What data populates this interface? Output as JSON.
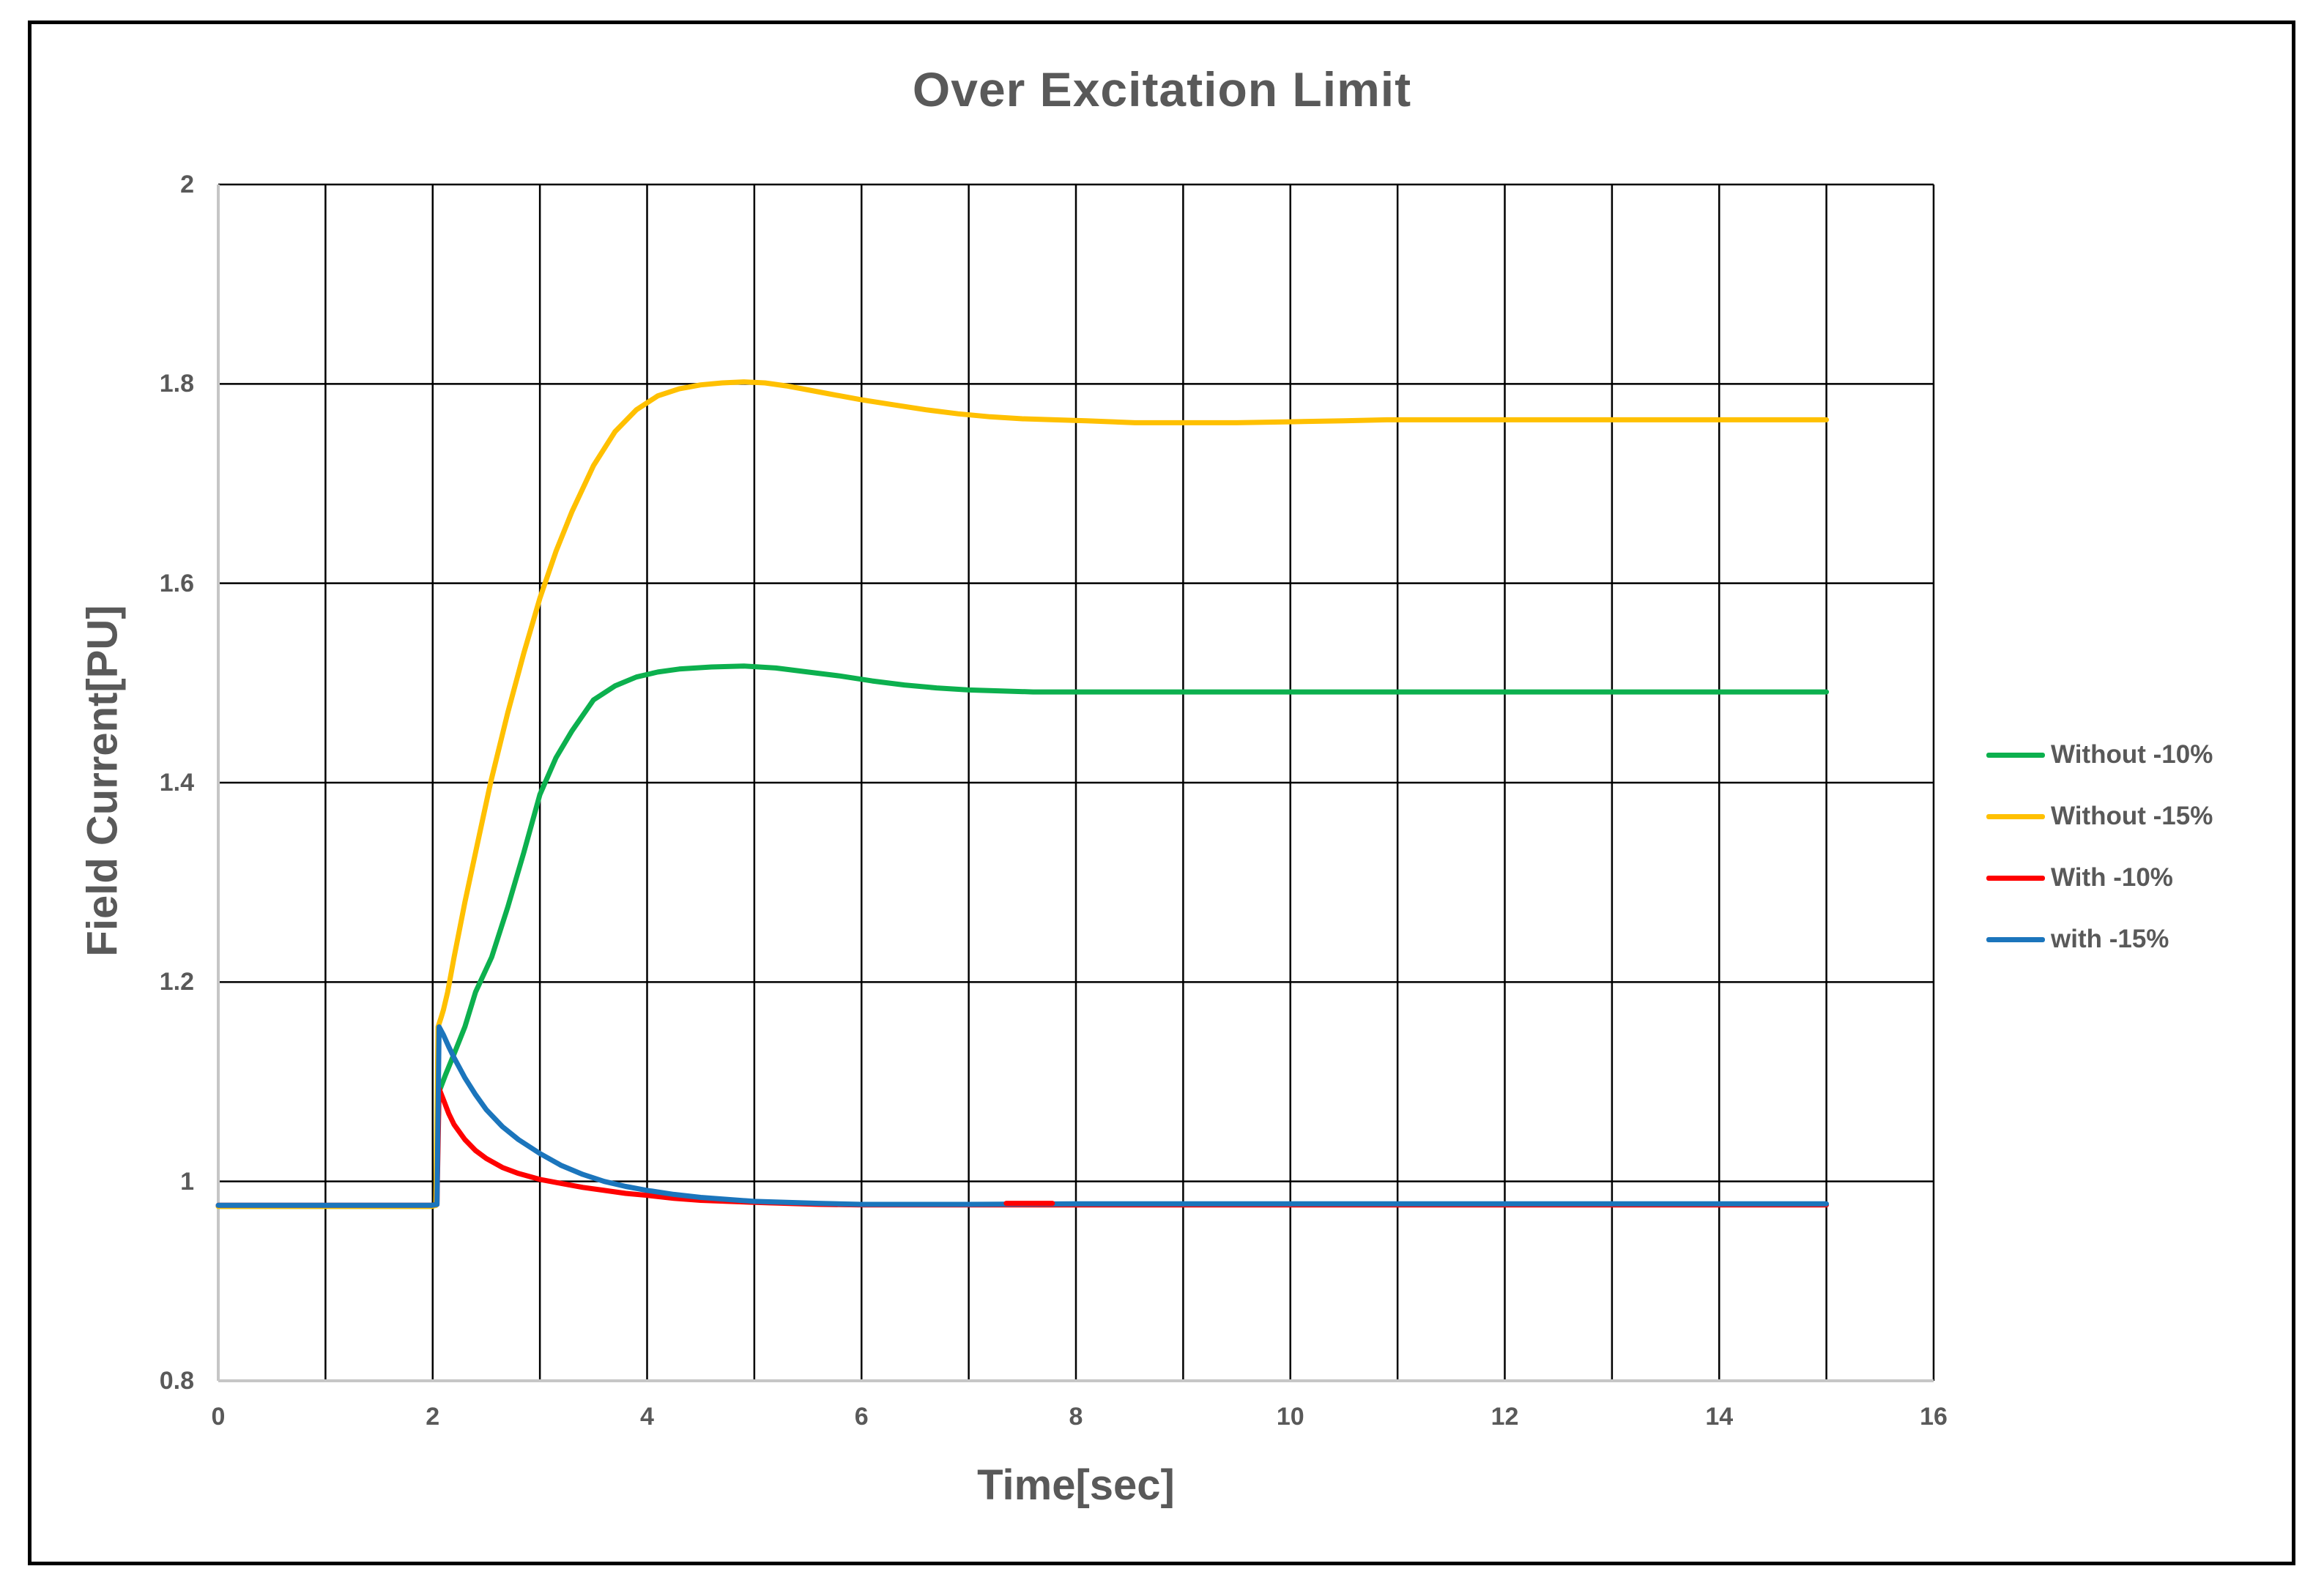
{
  "title": "Over Excitation Limit",
  "chart_data": {
    "type": "line",
    "title": "Over Excitation Limit",
    "xlabel": "Time[sec]",
    "ylabel": "Field Current[PU]",
    "xlim": [
      0,
      16
    ],
    "ylim": [
      0.8,
      2
    ],
    "grid": "on",
    "grid_color": "#000000",
    "axis_line_color": "#c6c6c6",
    "text_color": "#595959",
    "x_gridline_step": 1,
    "y_gridline_step": 0.2,
    "legend_position": "right-outside",
    "x_ticks": [
      {
        "value": 0,
        "label": "0"
      },
      {
        "value": 2,
        "label": "2"
      },
      {
        "value": 4,
        "label": "4"
      },
      {
        "value": 6,
        "label": "6"
      },
      {
        "value": 8,
        "label": "8"
      },
      {
        "value": 10,
        "label": "10"
      },
      {
        "value": 12,
        "label": "12"
      },
      {
        "value": 14,
        "label": "14"
      },
      {
        "value": 16,
        "label": "16"
      }
    ],
    "y_ticks": [
      {
        "value": 2.0,
        "label": "2"
      },
      {
        "value": 1.8,
        "label": "1.8"
      },
      {
        "value": 1.6,
        "label": "1.6"
      },
      {
        "value": 1.4,
        "label": "1.4"
      },
      {
        "value": 1.2,
        "label": "1.2"
      },
      {
        "value": 1.0,
        "label": "1"
      },
      {
        "value": 0.8,
        "label": "0.8"
      }
    ],
    "event_description": "Step disturbance at t=2 sec; all curves start at ~0.975 PU; curves end at t=15 sec",
    "series": [
      {
        "name": "Without -10%",
        "color": "#0cb04e",
        "points": [
          [
            0,
            0.975
          ],
          [
            1,
            0.975
          ],
          [
            1.99,
            0.975
          ],
          [
            2.03,
            0.976
          ],
          [
            2.06,
            1.09
          ],
          [
            2.12,
            1.107
          ],
          [
            2.2,
            1.128
          ],
          [
            2.3,
            1.155
          ],
          [
            2.4,
            1.19
          ],
          [
            2.55,
            1.225
          ],
          [
            2.7,
            1.275
          ],
          [
            2.85,
            1.33
          ],
          [
            3,
            1.388
          ],
          [
            3.15,
            1.425
          ],
          [
            3.3,
            1.452
          ],
          [
            3.5,
            1.483
          ],
          [
            3.7,
            1.497
          ],
          [
            3.9,
            1.506
          ],
          [
            4.1,
            1.511
          ],
          [
            4.3,
            1.514
          ],
          [
            4.6,
            1.516
          ],
          [
            4.9,
            1.517
          ],
          [
            5.2,
            1.515
          ],
          [
            5.5,
            1.511
          ],
          [
            5.8,
            1.507
          ],
          [
            6.1,
            1.502
          ],
          [
            6.4,
            1.498
          ],
          [
            6.7,
            1.495
          ],
          [
            7,
            1.493
          ],
          [
            7.3,
            1.492
          ],
          [
            7.6,
            1.491
          ],
          [
            8,
            1.491
          ],
          [
            9,
            1.491
          ],
          [
            10,
            1.491
          ],
          [
            11,
            1.491
          ],
          [
            12,
            1.491
          ],
          [
            13,
            1.491
          ],
          [
            14,
            1.491
          ],
          [
            15,
            1.491
          ]
        ]
      },
      {
        "name": "Without -15%",
        "color": "#ffc000",
        "points": [
          [
            0,
            0.975
          ],
          [
            1,
            0.975
          ],
          [
            1.99,
            0.975
          ],
          [
            2.03,
            0.976
          ],
          [
            2.05,
            1.155
          ],
          [
            2.08,
            1.165
          ],
          [
            2.1,
            1.172
          ],
          [
            2.14,
            1.19
          ],
          [
            2.2,
            1.225
          ],
          [
            2.3,
            1.28
          ],
          [
            2.4,
            1.33
          ],
          [
            2.54,
            1.4
          ],
          [
            2.7,
            1.47
          ],
          [
            2.85,
            1.53
          ],
          [
            3,
            1.585
          ],
          [
            3.15,
            1.632
          ],
          [
            3.3,
            1.672
          ],
          [
            3.5,
            1.718
          ],
          [
            3.7,
            1.752
          ],
          [
            3.9,
            1.774
          ],
          [
            4.1,
            1.788
          ],
          [
            4.3,
            1.795
          ],
          [
            4.5,
            1.799
          ],
          [
            4.7,
            1.801
          ],
          [
            4.9,
            1.802
          ],
          [
            5.1,
            1.801
          ],
          [
            5.3,
            1.798
          ],
          [
            5.5,
            1.794
          ],
          [
            5.7,
            1.79
          ],
          [
            6,
            1.784
          ],
          [
            6.3,
            1.779
          ],
          [
            6.6,
            1.774
          ],
          [
            6.9,
            1.77
          ],
          [
            7.2,
            1.767
          ],
          [
            7.5,
            1.765
          ],
          [
            7.8,
            1.764
          ],
          [
            8.1,
            1.763
          ],
          [
            8.55,
            1.761
          ],
          [
            9,
            1.761
          ],
          [
            9.5,
            1.761
          ],
          [
            10,
            1.762
          ],
          [
            10.5,
            1.763
          ],
          [
            10.9,
            1.764
          ],
          [
            11,
            1.764
          ],
          [
            12,
            1.764
          ],
          [
            13,
            1.764
          ],
          [
            14,
            1.764
          ],
          [
            15,
            1.764
          ]
        ]
      },
      {
        "name": "With -10%",
        "color": "#ff0000",
        "points": [
          [
            0,
            0.976
          ],
          [
            1,
            0.976
          ],
          [
            1.99,
            0.976
          ],
          [
            2.04,
            0.977
          ],
          [
            2.06,
            1.093
          ],
          [
            2.1,
            1.082
          ],
          [
            2.15,
            1.068
          ],
          [
            2.2,
            1.057
          ],
          [
            2.3,
            1.042
          ],
          [
            2.4,
            1.031
          ],
          [
            2.5,
            1.023
          ],
          [
            2.65,
            1.014
          ],
          [
            2.8,
            1.008
          ],
          [
            3,
            1.002
          ],
          [
            3.2,
            0.998
          ],
          [
            3.4,
            0.994
          ],
          [
            3.6,
            0.991
          ],
          [
            3.8,
            0.988
          ],
          [
            4,
            0.986
          ],
          [
            4.25,
            0.983
          ],
          [
            4.5,
            0.981
          ],
          [
            4.75,
            0.98
          ],
          [
            5,
            0.979
          ],
          [
            5.3,
            0.978
          ],
          [
            5.6,
            0.977
          ],
          [
            6,
            0.9765
          ],
          [
            7,
            0.9765
          ],
          [
            8,
            0.9765
          ],
          [
            9,
            0.9765
          ],
          [
            10,
            0.9765
          ],
          [
            12,
            0.9765
          ],
          [
            15,
            0.9765
          ]
        ]
      },
      {
        "name": "with -15%",
        "color": "#1b75bc",
        "points": [
          [
            0,
            0.976
          ],
          [
            1,
            0.976
          ],
          [
            1.99,
            0.976
          ],
          [
            2.04,
            0.977
          ],
          [
            2.06,
            1.155
          ],
          [
            2.1,
            1.147
          ],
          [
            2.15,
            1.135
          ],
          [
            2.2,
            1.124
          ],
          [
            2.3,
            1.104
          ],
          [
            2.4,
            1.087
          ],
          [
            2.5,
            1.072
          ],
          [
            2.65,
            1.055
          ],
          [
            2.8,
            1.042
          ],
          [
            3,
            1.028
          ],
          [
            3.2,
            1.016
          ],
          [
            3.4,
            1.007
          ],
          [
            3.6,
            1.0
          ],
          [
            3.8,
            0.995
          ],
          [
            4,
            0.991
          ],
          [
            4.25,
            0.987
          ],
          [
            4.5,
            0.984
          ],
          [
            4.75,
            0.982
          ],
          [
            5,
            0.98
          ],
          [
            5.3,
            0.979
          ],
          [
            5.6,
            0.978
          ],
          [
            6,
            0.977
          ],
          [
            7,
            0.977
          ],
          [
            8,
            0.9775
          ],
          [
            9,
            0.9775
          ],
          [
            10,
            0.9775
          ],
          [
            12,
            0.9775
          ],
          [
            15,
            0.9775
          ]
        ]
      }
    ],
    "overlay_segments": [
      {
        "series": "With -10%",
        "color": "#ff0000",
        "points": [
          [
            7.35,
            0.978
          ],
          [
            7.78,
            0.978
          ]
        ]
      }
    ]
  },
  "legend": {
    "items": [
      {
        "label": "Without -10%"
      },
      {
        "label": "Without -15%"
      },
      {
        "label": "With -10%"
      },
      {
        "label": "with -15%"
      }
    ]
  }
}
